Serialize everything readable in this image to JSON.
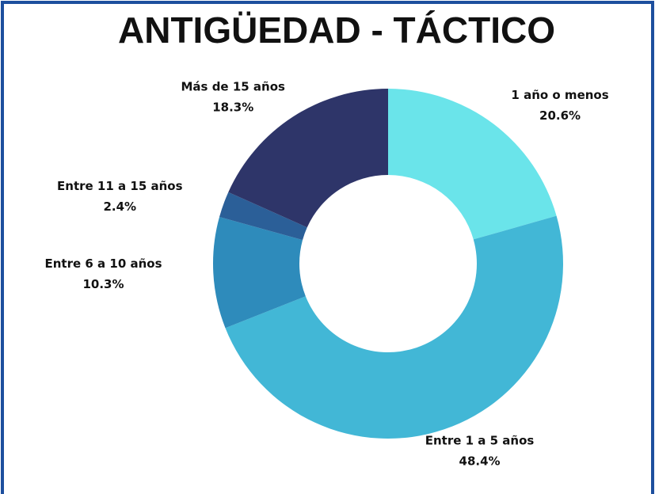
{
  "chart_data": {
    "type": "donut",
    "title": "ANTIGÜEDAD - TÁCTICO",
    "categories": [
      "1 año o menos",
      "Entre 1 a 5 años",
      "Entre 6 a 10 años",
      "Entre 11 a 15 años",
      "Más de 15 años"
    ],
    "values": [
      20.6,
      48.4,
      10.3,
      2.4,
      18.3
    ],
    "value_labels": [
      "20.6%",
      "48.4%",
      "10.3%",
      "2.4%",
      "18.3%"
    ],
    "colors": [
      "#6ae4ea",
      "#42b7d6",
      "#2e8bbb",
      "#2b5f98",
      "#2e3569"
    ]
  }
}
